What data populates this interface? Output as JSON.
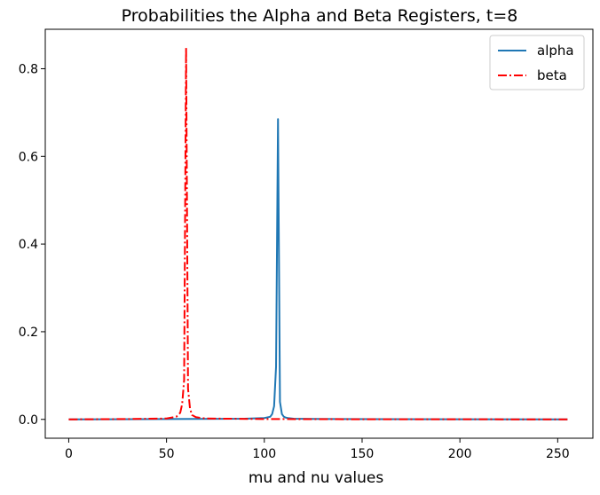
{
  "chart_data": {
    "type": "line",
    "title": "Probabilities the Alpha and Beta Registers, t=8",
    "xlabel": "mu and nu values",
    "ylabel": "",
    "xlim": [
      -12,
      268
    ],
    "ylim": [
      -0.043,
      0.89
    ],
    "xticks": [
      0,
      50,
      100,
      150,
      200,
      250
    ],
    "xtick_labels": [
      "0",
      "50",
      "100",
      "150",
      "200",
      "250"
    ],
    "yticks": [
      0.0,
      0.2,
      0.4,
      0.6,
      0.8
    ],
    "ytick_labels": [
      "0.0",
      "0.2",
      "0.4",
      "0.6",
      "0.8"
    ],
    "grid": false,
    "legend_position": "top-right",
    "series": [
      {
        "name": "alpha",
        "color": "#1f77b4",
        "style": "solid",
        "x": [
          0,
          50,
          90,
          100,
          103,
          104,
          105,
          106,
          107,
          108,
          109,
          110,
          111,
          112,
          115,
          125,
          160,
          200,
          255
        ],
        "y": [
          0.0,
          0.0007,
          0.0015,
          0.003,
          0.006,
          0.012,
          0.03,
          0.12,
          0.685,
          0.04,
          0.012,
          0.006,
          0.004,
          0.003,
          0.0015,
          0.001,
          0.0004,
          0.0002,
          0.0
        ]
      },
      {
        "name": "beta",
        "color": "#ff0000",
        "style": "dashdot",
        "x": [
          0,
          30,
          50,
          55,
          57,
          58,
          59,
          60,
          61,
          62,
          63,
          65,
          70,
          100,
          150,
          200,
          255
        ],
        "y": [
          0.0,
          0.0008,
          0.002,
          0.006,
          0.015,
          0.035,
          0.09,
          0.848,
          0.07,
          0.025,
          0.01,
          0.005,
          0.002,
          0.0008,
          0.0003,
          0.0002,
          0.0
        ]
      }
    ]
  }
}
